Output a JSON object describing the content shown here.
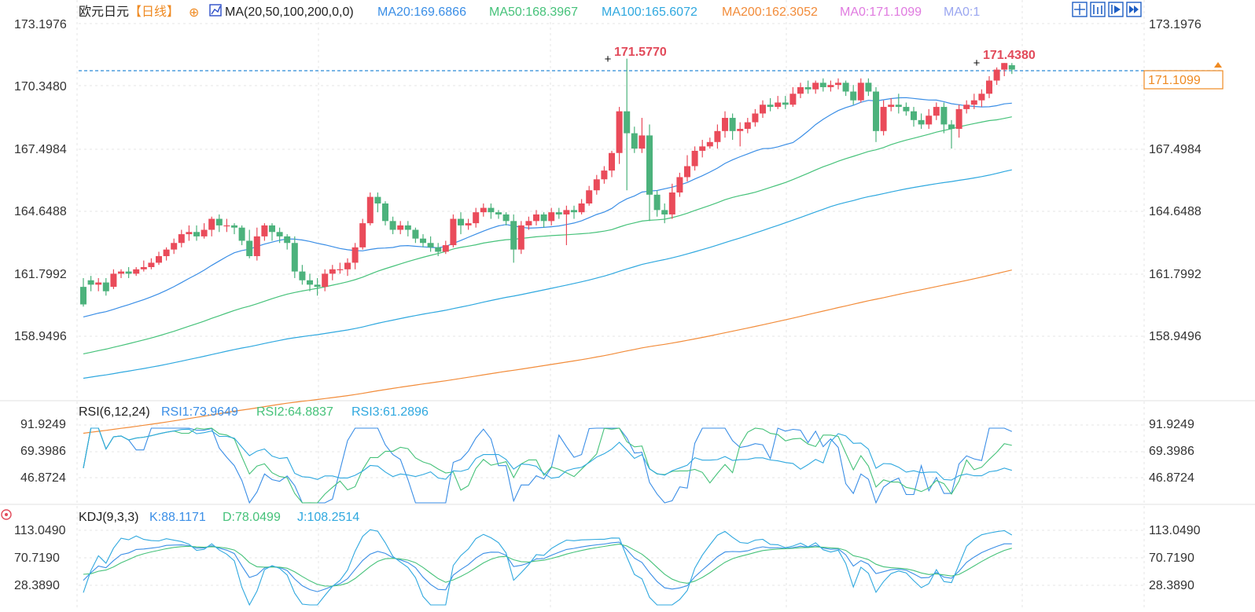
{
  "header": {
    "symbol": "欧元日元",
    "period": "【日线】",
    "ma_label": "MA(20,50,100,200,0,0)",
    "ma_items": [
      {
        "text": "MA20:169.6866",
        "color": "#3a8ee6"
      },
      {
        "text": "MA50:168.3967",
        "color": "#46c27a"
      },
      {
        "text": "MA100:165.6072",
        "color": "#2fa8df"
      },
      {
        "text": "MA200:162.3052",
        "color": "#f28c3a"
      },
      {
        "text": "MA0:171.1099",
        "color": "#e07be0"
      },
      {
        "text": "MA0:1",
        "color": "#9aa6f0"
      }
    ]
  },
  "toolbar": {
    "icons": [
      "crosshair-icon",
      "chart-type-icon",
      "indicator-icon",
      "forward-icon"
    ]
  },
  "price_axis": {
    "ticks": [
      "173.1976",
      "170.3480",
      "167.4984",
      "164.6488",
      "161.7992",
      "158.9496"
    ],
    "current_price": "171.1099",
    "high_label": "171.5770",
    "recent_high_label": "171.4380"
  },
  "rsi": {
    "title": "RSI(6,12,24)",
    "items": [
      {
        "text": "RSI1:73.9649",
        "color": "#3a8ee6"
      },
      {
        "text": "RSI2:64.8837",
        "color": "#46c27a"
      },
      {
        "text": "RSI3:61.2896",
        "color": "#2fa8df"
      }
    ],
    "ticks": [
      "91.9249",
      "69.3986",
      "46.8724"
    ]
  },
  "kdj": {
    "title": "KDJ(9,3,3)",
    "items": [
      {
        "text": "K:88.1171",
        "color": "#3a8ee6"
      },
      {
        "text": "D:78.0499",
        "color": "#46c27a"
      },
      {
        "text": "J:108.2514",
        "color": "#2fa8df"
      }
    ],
    "ticks": [
      "113.0490",
      "70.7190",
      "28.3890"
    ]
  },
  "colors": {
    "up": "#ea4b5a",
    "down": "#4cb27c",
    "ma20": "#3a8ee6",
    "ma50": "#46c27a",
    "ma100": "#2fa8df",
    "ma200": "#f28c3a"
  },
  "chart_data": {
    "type": "candlestick",
    "ylim": [
      157.0,
      173.5
    ],
    "candles": [
      [
        161.2,
        160.4,
        161.6,
        160.3
      ],
      [
        161.5,
        161.3,
        161.7,
        161.0
      ],
      [
        161.3,
        161.4,
        161.6,
        161.0
      ],
      [
        161.4,
        161.0,
        161.6,
        160.8
      ],
      [
        161.2,
        161.8,
        162.0,
        161.1
      ],
      [
        161.8,
        161.9,
        162.0,
        161.6
      ],
      [
        161.9,
        161.8,
        162.1,
        161.6
      ],
      [
        161.8,
        162.0,
        162.1,
        161.7
      ],
      [
        162.0,
        162.1,
        162.4,
        161.9
      ],
      [
        162.1,
        162.3,
        162.5,
        162.0
      ],
      [
        162.3,
        162.6,
        162.8,
        162.2
      ],
      [
        162.6,
        162.9,
        163.0,
        162.4
      ],
      [
        162.9,
        163.2,
        163.4,
        162.7
      ],
      [
        163.2,
        163.6,
        163.8,
        163.0
      ],
      [
        163.6,
        163.7,
        164.0,
        163.3
      ],
      [
        163.7,
        163.5,
        164.0,
        163.3
      ],
      [
        163.5,
        163.8,
        164.1,
        163.4
      ],
      [
        163.8,
        164.3,
        164.4,
        163.5
      ],
      [
        164.3,
        164.0,
        164.5,
        163.7
      ],
      [
        164.0,
        164.0,
        164.3,
        163.7
      ],
      [
        164.0,
        163.9,
        164.1,
        163.6
      ],
      [
        163.9,
        163.3,
        164.0,
        163.1
      ],
      [
        163.3,
        162.6,
        163.8,
        162.5
      ],
      [
        162.6,
        163.5,
        163.9,
        162.4
      ],
      [
        163.5,
        164.0,
        164.1,
        163.3
      ],
      [
        164.0,
        163.7,
        164.1,
        163.3
      ],
      [
        163.7,
        163.5,
        163.9,
        163.2
      ],
      [
        163.5,
        163.2,
        163.6,
        162.9
      ],
      [
        163.2,
        161.9,
        163.5,
        161.6
      ],
      [
        161.9,
        161.5,
        162.2,
        161.3
      ],
      [
        161.5,
        161.3,
        161.8,
        161.0
      ],
      [
        161.3,
        161.2,
        161.6,
        160.8
      ],
      [
        161.2,
        161.8,
        162.0,
        161.0
      ],
      [
        161.8,
        162.0,
        162.2,
        161.5
      ],
      [
        162.0,
        162.0,
        162.3,
        161.8
      ],
      [
        162.0,
        162.3,
        162.5,
        161.7
      ],
      [
        162.3,
        163.0,
        163.2,
        162.0
      ],
      [
        163.0,
        164.1,
        164.3,
        162.9
      ],
      [
        164.1,
        165.3,
        165.5,
        164.0
      ],
      [
        165.3,
        165.0,
        165.5,
        164.6
      ],
      [
        165.0,
        164.2,
        165.1,
        164.0
      ],
      [
        164.2,
        163.8,
        164.4,
        163.6
      ],
      [
        163.8,
        164.0,
        164.2,
        163.6
      ],
      [
        164.0,
        163.8,
        164.2,
        163.5
      ],
      [
        163.8,
        163.4,
        163.9,
        163.2
      ],
      [
        163.4,
        163.2,
        163.6,
        163.0
      ],
      [
        163.2,
        163.0,
        163.5,
        162.8
      ],
      [
        163.0,
        162.8,
        163.2,
        162.6
      ],
      [
        162.8,
        163.1,
        163.3,
        162.7
      ],
      [
        163.1,
        164.3,
        164.5,
        163.0
      ],
      [
        164.3,
        164.0,
        164.6,
        163.6
      ],
      [
        164.0,
        164.1,
        164.3,
        163.8
      ],
      [
        164.1,
        164.6,
        164.8,
        163.9
      ],
      [
        164.6,
        164.8,
        165.0,
        164.4
      ],
      [
        164.8,
        164.6,
        165.0,
        164.3
      ],
      [
        164.6,
        164.5,
        164.7,
        164.3
      ],
      [
        164.5,
        164.2,
        164.6,
        164.0
      ],
      [
        164.2,
        162.9,
        164.5,
        162.3
      ],
      [
        162.9,
        164.0,
        164.2,
        162.7
      ],
      [
        164.0,
        164.2,
        164.4,
        163.8
      ],
      [
        164.2,
        164.5,
        164.7,
        164.0
      ],
      [
        164.5,
        164.2,
        164.6,
        163.9
      ],
      [
        164.2,
        164.6,
        164.8,
        164.0
      ],
      [
        164.6,
        164.5,
        164.8,
        164.3
      ],
      [
        164.5,
        164.7,
        164.9,
        163.1
      ],
      [
        164.7,
        164.6,
        164.9,
        164.3
      ],
      [
        164.6,
        165.0,
        165.2,
        164.5
      ],
      [
        165.0,
        165.6,
        165.8,
        164.9
      ],
      [
        165.6,
        166.1,
        166.3,
        165.4
      ],
      [
        166.1,
        166.5,
        166.7,
        165.9
      ],
      [
        166.5,
        167.3,
        167.4,
        166.2
      ],
      [
        167.3,
        169.2,
        169.4,
        166.8
      ],
      [
        169.2,
        168.2,
        171.6,
        165.6
      ],
      [
        168.2,
        167.5,
        168.5,
        167.3
      ],
      [
        167.5,
        168.1,
        168.9,
        167.3
      ],
      [
        168.1,
        165.4,
        168.6,
        164.2
      ],
      [
        165.4,
        164.7,
        165.6,
        164.4
      ],
      [
        164.7,
        164.5,
        165.0,
        164.1
      ],
      [
        164.5,
        165.5,
        165.9,
        164.3
      ],
      [
        165.5,
        166.2,
        166.4,
        165.3
      ],
      [
        166.2,
        166.7,
        167.2,
        166.0
      ],
      [
        166.7,
        167.4,
        167.6,
        166.5
      ],
      [
        167.4,
        167.6,
        167.9,
        167.1
      ],
      [
        167.6,
        167.8,
        168.0,
        167.5
      ],
      [
        167.8,
        168.3,
        168.6,
        167.5
      ],
      [
        168.3,
        168.9,
        169.2,
        168.0
      ],
      [
        168.9,
        168.3,
        169.1,
        167.9
      ],
      [
        168.3,
        168.4,
        168.7,
        167.6
      ],
      [
        168.4,
        168.7,
        168.9,
        168.2
      ],
      [
        168.7,
        169.1,
        169.3,
        168.5
      ],
      [
        169.1,
        169.5,
        169.7,
        168.9
      ],
      [
        169.5,
        169.4,
        169.8,
        169.2
      ],
      [
        169.4,
        169.6,
        169.9,
        169.3
      ],
      [
        169.6,
        169.5,
        169.9,
        169.3
      ],
      [
        169.5,
        170.0,
        170.3,
        169.4
      ],
      [
        170.0,
        170.3,
        170.5,
        169.8
      ],
      [
        170.3,
        170.2,
        170.6,
        170.0
      ],
      [
        170.2,
        170.5,
        170.6,
        170.0
      ],
      [
        170.5,
        170.3,
        170.7,
        170.1
      ],
      [
        170.3,
        170.4,
        170.6,
        170.1
      ],
      [
        170.4,
        170.5,
        170.7,
        170.2
      ],
      [
        170.5,
        170.1,
        170.6,
        169.9
      ],
      [
        170.1,
        169.7,
        170.4,
        169.5
      ],
      [
        169.7,
        170.5,
        170.7,
        169.6
      ],
      [
        170.5,
        170.1,
        170.7,
        169.9
      ],
      [
        170.1,
        168.3,
        170.3,
        167.8
      ],
      [
        168.3,
        169.4,
        169.7,
        168.1
      ],
      [
        169.4,
        169.5,
        169.8,
        169.2
      ],
      [
        169.5,
        169.4,
        170.0,
        169.1
      ],
      [
        169.4,
        169.2,
        169.6,
        169.0
      ],
      [
        169.2,
        168.8,
        169.4,
        168.5
      ],
      [
        168.8,
        168.6,
        169.1,
        168.4
      ],
      [
        168.6,
        169.0,
        169.3,
        168.4
      ],
      [
        169.0,
        169.4,
        169.6,
        168.8
      ],
      [
        169.4,
        168.6,
        169.6,
        168.2
      ],
      [
        168.6,
        168.4,
        168.8,
        167.5
      ],
      [
        168.4,
        169.3,
        169.5,
        168.0
      ],
      [
        169.3,
        169.5,
        169.7,
        169.1
      ],
      [
        169.5,
        169.7,
        170.0,
        169.3
      ],
      [
        169.7,
        170.0,
        170.2,
        169.4
      ],
      [
        170.0,
        170.6,
        170.8,
        169.8
      ],
      [
        170.6,
        171.1,
        171.2,
        170.4
      ],
      [
        171.1,
        171.4,
        171.4,
        170.8
      ],
      [
        171.3,
        171.1,
        171.4,
        170.9
      ]
    ]
  }
}
